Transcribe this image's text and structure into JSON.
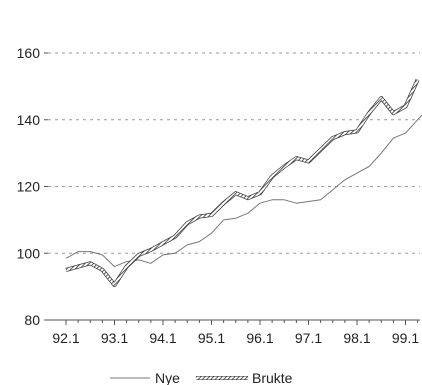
{
  "chart_data": {
    "type": "line",
    "title": "",
    "xlabel": "",
    "ylabel": "",
    "ylim": [
      80,
      160
    ],
    "yticks": [
      80,
      100,
      120,
      140,
      160
    ],
    "x_tick_labels": [
      "92.1",
      "93.1",
      "94.1",
      "95.1",
      "96.1",
      "97.1",
      "98.1",
      "99.1"
    ],
    "grid": "horizontal dashed",
    "legend_position": "bottom",
    "series": [
      {
        "name": "Nye",
        "style": "thin-line",
        "color": "#777777",
        "values": [
          98.5,
          100.5,
          100.5,
          99.5,
          96,
          97.5,
          98,
          97,
          99.5,
          100,
          102.5,
          103.5,
          106,
          110,
          110.5,
          112,
          115,
          116,
          116,
          115,
          115.5,
          116,
          119,
          122,
          124,
          126,
          130,
          134.5,
          136,
          140,
          144
        ]
      },
      {
        "name": "Brukte",
        "style": "hatched-line",
        "color": "#555555",
        "values": [
          95,
          96,
          97,
          95,
          90.5,
          96,
          99.5,
          101,
          103,
          105,
          109,
          111,
          111.5,
          115,
          118,
          116.5,
          118,
          123,
          126,
          128.5,
          127.5,
          131,
          134.5,
          136,
          136.5,
          142,
          146.5,
          142,
          144,
          152
        ]
      }
    ]
  }
}
